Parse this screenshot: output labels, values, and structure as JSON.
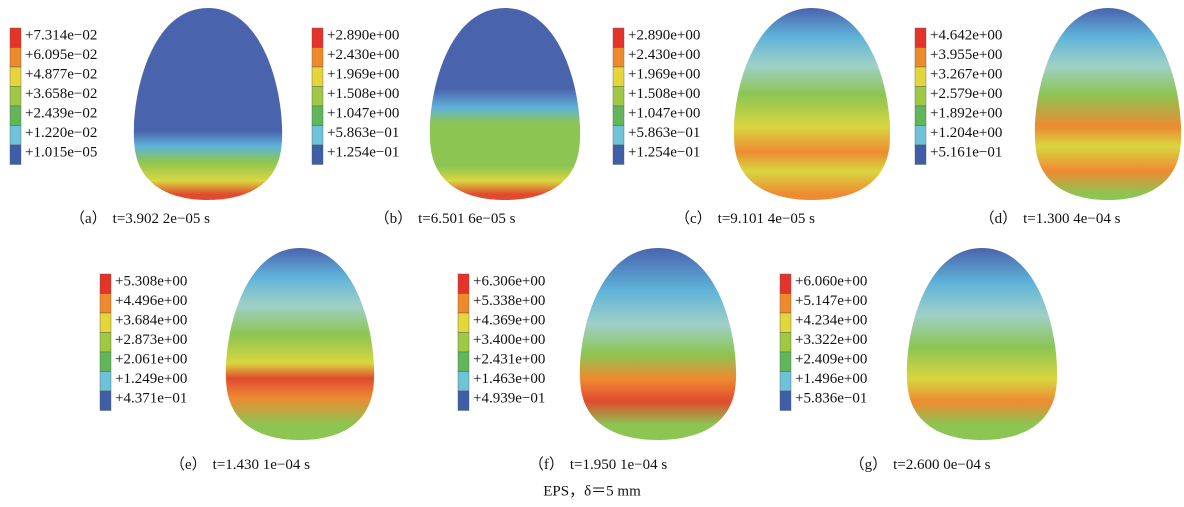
{
  "panels": [
    {
      "label": "（a）",
      "time": "t=3.902 2e−05 s",
      "legend": [
        "+7.314e−02",
        "+6.095e−02",
        "+4.877e−02",
        "+3.658e−02",
        "+2.439e−02",
        "+1.220e−02",
        "+1.015e−05"
      ]
    },
    {
      "label": "（b）",
      "time": "t=6.501 6e−05 s",
      "legend": [
        "+2.890e+00",
        "+2.430e+00",
        "+1.969e+00",
        "+1.508e+00",
        "+1.047e+00",
        "+5.863e−01",
        "+1.254e−01"
      ]
    },
    {
      "label": "（c）",
      "time": "t=9.101 4e−05 s",
      "legend": [
        "+2.890e+00",
        "+2.430e+00",
        "+1.969e+00",
        "+1.508e+00",
        "+1.047e+00",
        "+5.863e−01",
        "+1.254e−01"
      ]
    },
    {
      "label": "（d）",
      "time": "t=1.300 4e−04 s",
      "legend": [
        "+4.642e+00",
        "+3.955e+00",
        "+3.267e+00",
        "+2.579e+00",
        "+1.892e+00",
        "+1.204e+00",
        "+5.161e−01"
      ]
    },
    {
      "label": "（e）",
      "time": "t=1.430 1e−04 s",
      "legend": [
        "+5.308e+00",
        "+4.496e+00",
        "+3.684e+00",
        "+2.873e+00",
        "+2.061e+00",
        "+1.249e+00",
        "+4.371e−01"
      ]
    },
    {
      "label": "（f）",
      "time": "t=1.950 1e−04 s",
      "legend": [
        "+6.306e+00",
        "+5.338e+00",
        "+4.369e+00",
        "+3.400e+00",
        "+2.431e+00",
        "+1.463e+00",
        "+4.939e−01"
      ]
    },
    {
      "label": "（g）",
      "time": "t=2.600 0e−04 s",
      "legend": [
        "+6.060e+00",
        "+5.147e+00",
        "+4.234e+00",
        "+3.322e+00",
        "+2.409e+00",
        "+1.496e+00",
        "+5.836e−01"
      ]
    }
  ],
  "caption": "EPS，δ＝5 mm"
}
